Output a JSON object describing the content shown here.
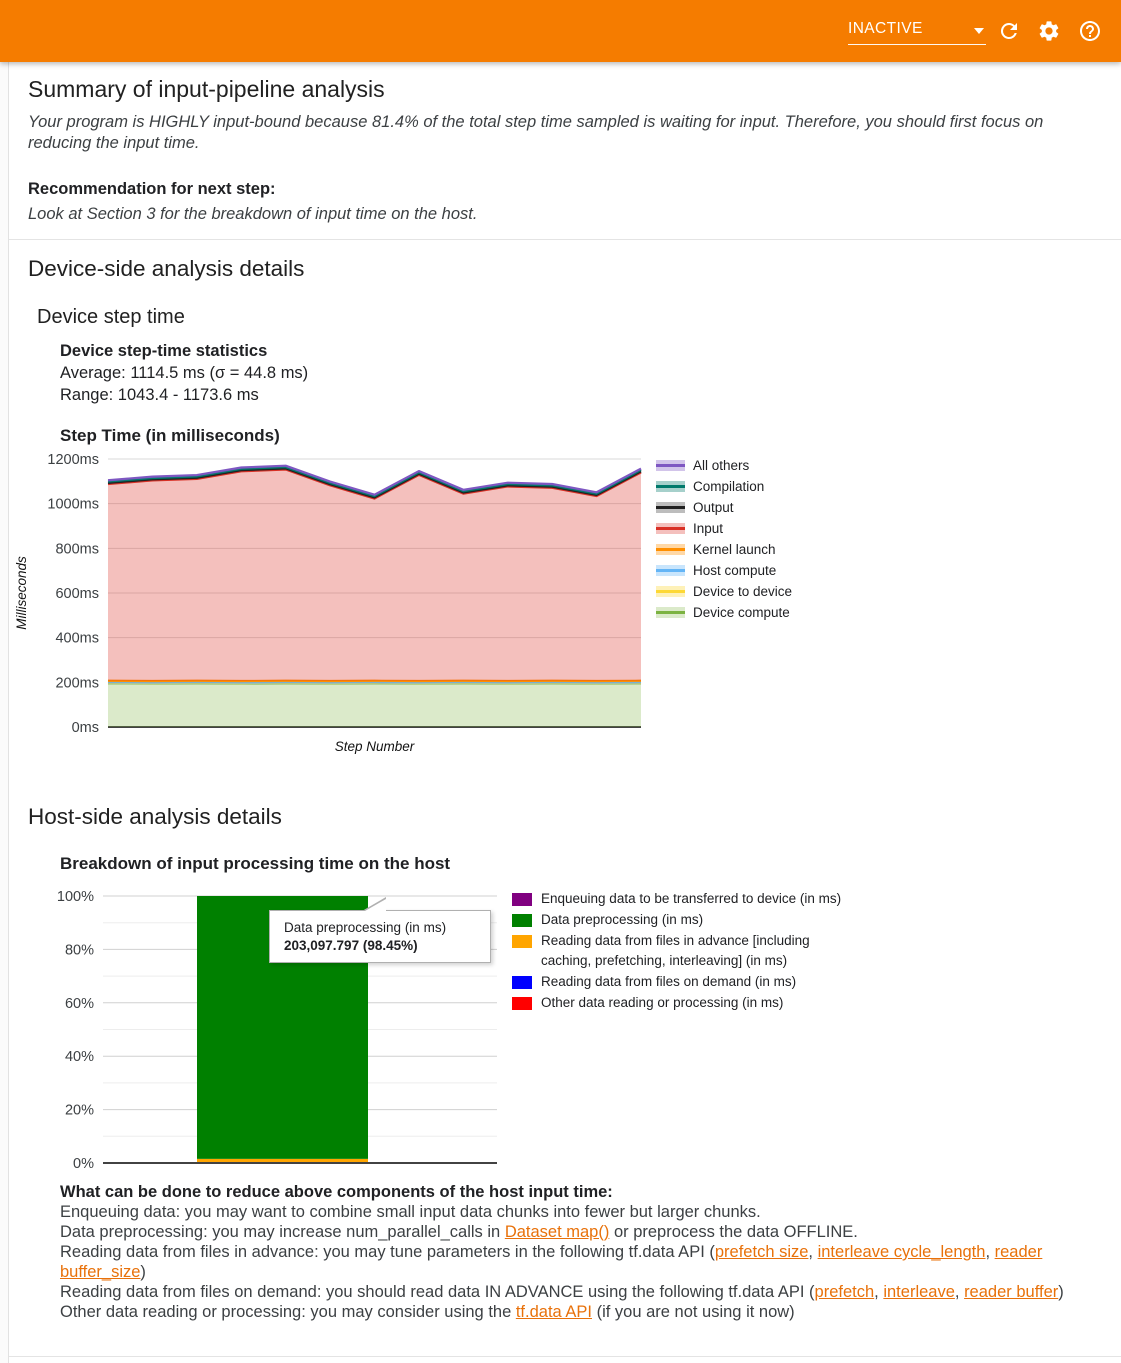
{
  "appbar": {
    "status": "INACTIVE",
    "background": "#f57c00",
    "icons": [
      "chevron-down",
      "refresh",
      "settings",
      "help"
    ]
  },
  "summary": {
    "title": "Summary of input-pipeline analysis",
    "body": "Your program is HIGHLY input-bound because 81.4% of the total step time sampled is waiting for input. Therefore, you should first focus on reducing the input time.",
    "recommendation_label": "Recommendation for next step:",
    "recommendation": "Look at Section 3 for the breakdown of input time on the host."
  },
  "device_section": {
    "title": "Device-side analysis details",
    "subtitle": "Device step time",
    "stats_title": "Device step-time statistics",
    "average_label": "Average: 1114.5 ms (σ = 44.8 ms)",
    "range_label": "Range: 1043.4 - 1173.6 ms"
  },
  "host_section": {
    "title": "Host-side analysis details"
  },
  "chart_data": [
    {
      "type": "area",
      "stacked": true,
      "title": "Step Time (in milliseconds)",
      "xlabel": "Step Number",
      "ylabel": "Milliseconds",
      "ylim": [
        0,
        1200
      ],
      "ytick_labels": [
        "0ms",
        "200ms",
        "400ms",
        "600ms",
        "800ms",
        "1000ms",
        "1200ms"
      ],
      "x": [
        1,
        2,
        3,
        4,
        5,
        6,
        7,
        8,
        9,
        10,
        11,
        12,
        13
      ],
      "total_step_time_ms": [
        1105,
        1122,
        1128,
        1163,
        1170,
        1100,
        1040,
        1147,
        1062,
        1095,
        1088,
        1052,
        1157
      ],
      "stats": {
        "average_ms": 1114.5,
        "stddev_ms": 44.8,
        "min_ms": 1043.4,
        "max_ms": 1173.6
      },
      "series_bottom_to_top": [
        {
          "name": "Device compute",
          "line": "#7cb342",
          "fill": "rgba(124,179,66,0.28)",
          "values": [
            196,
            195,
            196,
            195,
            196,
            195,
            196,
            195,
            196,
            195,
            196,
            195,
            196
          ]
        },
        {
          "name": "Device to device",
          "line": "#fdd835",
          "fill": "rgba(253,216,53,0.35)",
          "values": [
            2,
            2,
            2,
            2,
            2,
            2,
            2,
            2,
            2,
            2,
            2,
            2,
            2
          ]
        },
        {
          "name": "Host compute",
          "line": "#64b5f6",
          "fill": "rgba(100,181,246,0.35)",
          "values": [
            2,
            2,
            2,
            2,
            2,
            2,
            2,
            2,
            2,
            2,
            2,
            2,
            2
          ]
        },
        {
          "name": "Kernel launch",
          "line": "#ff8f00",
          "fill": "rgba(255,143,0,0.35)",
          "values": [
            7,
            7,
            7,
            7,
            7,
            7,
            7,
            7,
            7,
            7,
            7,
            7,
            7
          ]
        },
        {
          "name": "Input",
          "line": "#d93025",
          "fill": "rgba(217,48,37,0.30)",
          "values": [
            881,
            898,
            904,
            939,
            946,
            876,
            816,
            923,
            838,
            871,
            864,
            828,
            933
          ]
        },
        {
          "name": "Output",
          "line": "#212121",
          "fill": "rgba(66,66,66,0.35)",
          "values": [
            5,
            5,
            5,
            5,
            5,
            5,
            5,
            5,
            5,
            5,
            5,
            5,
            5
          ]
        },
        {
          "name": "Compilation",
          "line": "#00796b",
          "fill": "rgba(0,121,107,0.35)",
          "values": [
            6,
            6,
            6,
            6,
            6,
            6,
            6,
            6,
            6,
            6,
            6,
            6,
            6
          ]
        },
        {
          "name": "All others",
          "line": "#7e57c2",
          "fill": "rgba(126,87,194,0.35)",
          "values": [
            6,
            6,
            6,
            6,
            6,
            6,
            6,
            6,
            6,
            6,
            6,
            6,
            6
          ]
        }
      ],
      "legend_top_to_bottom": [
        "All others",
        "Compilation",
        "Output",
        "Input",
        "Kernel launch",
        "Host compute",
        "Device to device",
        "Device compute"
      ],
      "legend_position": "right",
      "grid": true
    },
    {
      "type": "bar",
      "stacked": true,
      "percent_axis": true,
      "title": "Breakdown of input processing time on the host",
      "ytick_labels": [
        "0%",
        "20%",
        "40%",
        "60%",
        "80%",
        "100%"
      ],
      "categories": [
        ""
      ],
      "series": [
        {
          "name": "Enqueuing data to be transferred to device (in ms)",
          "color": "#800080",
          "percent": 0.0
        },
        {
          "name": "Data preprocessing (in ms)",
          "color": "#008000",
          "percent": 98.45,
          "value_ms": 203097.797
        },
        {
          "name": "Reading data from files in advance [including caching, prefetching, interleaving] (in ms)",
          "color": "#ffa500",
          "percent": 1.55
        },
        {
          "name": "Reading data from files on demand (in ms)",
          "color": "#0000ff",
          "percent": 0.0
        },
        {
          "name": "Other data reading or processing (in ms)",
          "color": "#ff0000",
          "percent": 0.0
        }
      ],
      "legend_lines": [
        [
          "Enqueuing data to be transferred to device (in ms)"
        ],
        [
          "Data preprocessing (in ms)"
        ],
        [
          "Reading data from files in advance [including",
          "caching, prefetching, interleaving] (in ms)"
        ],
        [
          "Reading data from files on demand (in ms)"
        ],
        [
          "Other data reading or processing (in ms)"
        ]
      ],
      "legend_position": "right",
      "grid": true,
      "tooltip": {
        "title": "Data preprocessing (in ms)",
        "value": "203,097.797 (98.45%)"
      }
    }
  ],
  "tips": {
    "heading": "What can be done to reduce above components of the host input time:",
    "lines": [
      [
        {
          "t": "Enqueuing data: you may want to combine small input data chunks into fewer but larger chunks."
        }
      ],
      [
        {
          "t": "Data preprocessing: you may increase num_parallel_calls in "
        },
        {
          "t": "Dataset map()",
          "link": true
        },
        {
          "t": " or preprocess the data OFFLINE."
        }
      ],
      [
        {
          "t": "Reading data from files in advance: you may tune parameters in the following tf.data API ("
        },
        {
          "t": "prefetch size",
          "link": true
        },
        {
          "t": ", "
        },
        {
          "t": "interleave cycle_length",
          "link": true
        },
        {
          "t": ", "
        },
        {
          "t": "reader buffer_size",
          "link": true
        },
        {
          "t": ")"
        }
      ],
      [
        {
          "t": "Reading data from files on demand: you should read data IN ADVANCE using the following tf.data API ("
        },
        {
          "t": "prefetch",
          "link": true
        },
        {
          "t": ", "
        },
        {
          "t": "interleave",
          "link": true
        },
        {
          "t": ", "
        },
        {
          "t": "reader buffer",
          "link": true
        },
        {
          "t": ")"
        }
      ],
      [
        {
          "t": "Other data reading or processing: you may consider using the "
        },
        {
          "t": "tf.data API",
          "link": true
        },
        {
          "t": " (if you are not using it now)"
        }
      ]
    ]
  }
}
